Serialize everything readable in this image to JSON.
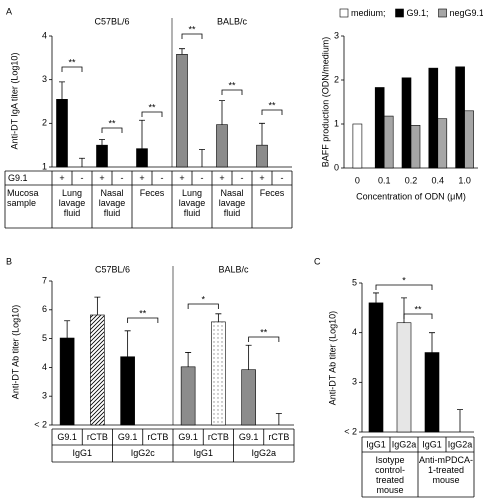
{
  "chart_data": [
    {
      "type": "bar",
      "panel": "A",
      "y_label": "Anti-DT IgA titer (Log10)",
      "groups": [
        "C57BL/6",
        "BALB/c"
      ],
      "categories": [
        "+",
        "-",
        "+",
        "-",
        "+",
        "-",
        "+",
        "-",
        "+",
        "-",
        "+",
        "-"
      ],
      "values": [
        2.55,
        1,
        1.5,
        null,
        1.42,
        null,
        3.58,
        1,
        1.97,
        null,
        1.5,
        null
      ],
      "errors": [
        0.4,
        0.2,
        0.13,
        null,
        0.65,
        null,
        0.13,
        0.4,
        0.55,
        null,
        0.5,
        null
      ],
      "colors": [
        "#000000",
        "#000000",
        "#000000",
        "#000000",
        "#000000",
        "#000000",
        "#8c8c8c",
        "#8c8c8c",
        "#8c8c8c",
        "#8c8c8c",
        "#8c8c8c",
        "#8c8c8c"
      ],
      "ylim": [
        1,
        4
      ],
      "yticks": [
        1,
        2,
        3,
        4
      ],
      "annotations": [
        "**",
        "**",
        "**",
        "**",
        "**",
        "**"
      ],
      "row_labels": [
        "G9.1",
        "Mucosa sample"
      ],
      "samples": [
        "Lung lavage fluid",
        "Nasal lavage fluid",
        "Feces",
        "Lung lavage fluid",
        "Nasal lavage fluid",
        "Feces"
      ]
    },
    {
      "type": "bar",
      "y_label": "BAFF production (ODN/medium)",
      "x_label": "Concentration of ODN (μM)",
      "categories": [
        "0",
        "0.1",
        "0.2",
        "0.4",
        "1.0"
      ],
      "series": [
        {
          "name": "medium;",
          "color": "#ffffff",
          "values": [
            1,
            null,
            null,
            null,
            null
          ]
        },
        {
          "name": "G9.1;",
          "color": "#000000",
          "values": [
            null,
            1.83,
            2.05,
            2.27,
            2.3
          ]
        },
        {
          "name": "negG9.1",
          "color": "#a6a6a6",
          "values": [
            null,
            1.18,
            0.97,
            1.12,
            1.3
          ]
        }
      ],
      "ylim": [
        0,
        3
      ],
      "yticks": [
        0,
        1,
        2,
        3
      ],
      "legend": "top"
    },
    {
      "type": "bar",
      "panel": "B",
      "y_label": "Anti-DT Ab titer (Log10)",
      "groups": [
        "C57BL/6",
        "BALB/c"
      ],
      "categories": [
        "G9.1",
        "rCTB",
        "G9.1",
        "rCTB",
        "G9.1",
        "rCTB",
        "G9.1",
        "rCTB"
      ],
      "subgroups": [
        "IgG1",
        "IgG2c",
        "IgG1",
        "IgG2a"
      ],
      "values": [
        5.02,
        5.82,
        4.37,
        null,
        4.02,
        5.58,
        3.92,
        2
      ],
      "errors": [
        0.6,
        0.62,
        0.9,
        null,
        0.5,
        0.28,
        0.85,
        0.4
      ],
      "colors": [
        "#000000",
        "#000000",
        "#000000",
        "#000000",
        "#8c8c8c",
        "#8c8c8c",
        "#8c8c8c",
        "#8c8c8c"
      ],
      "patterns": [
        "solid",
        "hatch",
        "solid",
        "solid",
        "solid",
        "dots",
        "solid",
        "solid"
      ],
      "ylim": [
        2,
        7
      ],
      "yticks": [
        {
          "value": 2,
          "label": "< 2"
        },
        3,
        4,
        5,
        6,
        7
      ],
      "annotations": [
        "**",
        "*",
        "**"
      ]
    },
    {
      "type": "bar",
      "panel": "C",
      "y_label": "Anti-DT Ab titer (Log10)",
      "categories": [
        "IgG1",
        "IgG2a",
        "IgG1",
        "IgG2a"
      ],
      "values": [
        4.6,
        4.2,
        3.6,
        2
      ],
      "errors": [
        0.2,
        0.5,
        0.4,
        0.45
      ],
      "colors": [
        "#000000",
        "#e6e6e6",
        "#000000",
        "#000000"
      ],
      "ylim": [
        2,
        5
      ],
      "yticks": [
        {
          "value": 2,
          "label": "< 2"
        },
        3,
        4,
        5
      ],
      "groups": [
        "Isotype control-treated mouse",
        "Anti-mPDCA-1-treated mouse"
      ],
      "annotations": [
        "*",
        "**"
      ]
    }
  ]
}
